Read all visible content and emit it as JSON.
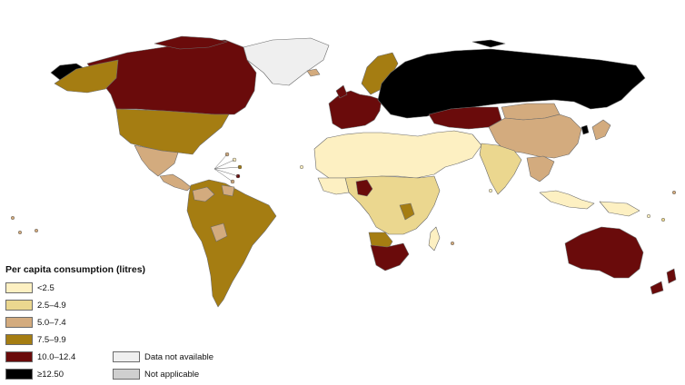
{
  "legend": {
    "title": "Per capita consumption (litres)",
    "categories": [
      {
        "label": "<2.5",
        "color": "#fdf0c2"
      },
      {
        "label": "2.5–4.9",
        "color": "#ebd78f"
      },
      {
        "label": "5.0–7.4",
        "color": "#d3ab7e"
      },
      {
        "label": "7.5–9.9",
        "color": "#a57d12"
      },
      {
        "label": "10.0–12.4",
        "color": "#6a0b0b"
      },
      {
        "label": "≥12.50",
        "color": "#000000"
      }
    ],
    "extra": [
      {
        "label": "Data not available",
        "color": "#efefef"
      },
      {
        "label": "Not applicable",
        "color": "#cfcfcf"
      }
    ]
  },
  "regions": [
    {
      "name": "Alaska",
      "category": "≥12.50"
    },
    {
      "name": "Canada",
      "category": "10.0–12.4"
    },
    {
      "name": "Greenland",
      "category": "Data not available"
    },
    {
      "name": "United States",
      "category": "7.5–9.9"
    },
    {
      "name": "Mexico",
      "category": "5.0–7.4"
    },
    {
      "name": "Central America",
      "category": "5.0–7.4"
    },
    {
      "name": "South America",
      "category": "7.5–9.9"
    },
    {
      "name": "Western Europe",
      "category": "10.0–12.4"
    },
    {
      "name": "Scandinavia",
      "category": "7.5–9.9"
    },
    {
      "name": "Russia",
      "category": "≥12.50"
    },
    {
      "name": "Eastern Europe",
      "category": "≥12.50"
    },
    {
      "name": "Kazakhstan",
      "category": "10.0–12.4"
    },
    {
      "name": "North Africa and Middle East",
      "category": "<2.5"
    },
    {
      "name": "Central Africa",
      "category": "2.5–4.9"
    },
    {
      "name": "Nigeria",
      "category": "10.0–12.4"
    },
    {
      "name": "Southern Africa",
      "category": "10.0–12.4"
    },
    {
      "name": "Namibia and Botswana",
      "category": "7.5–9.9"
    },
    {
      "name": "India",
      "category": "2.5–4.9"
    },
    {
      "name": "China",
      "category": "5.0–7.4"
    },
    {
      "name": "Mongolia",
      "category": "5.0–7.4"
    },
    {
      "name": "South Korea",
      "category": "≥12.50"
    },
    {
      "name": "Japan",
      "category": "5.0–7.4"
    },
    {
      "name": "Southeast Asia",
      "category": "5.0–7.4"
    },
    {
      "name": "Indonesia",
      "category": "<2.5"
    },
    {
      "name": "Australia",
      "category": "10.0–12.4"
    },
    {
      "name": "New Zealand",
      "category": "10.0–12.4"
    }
  ]
}
